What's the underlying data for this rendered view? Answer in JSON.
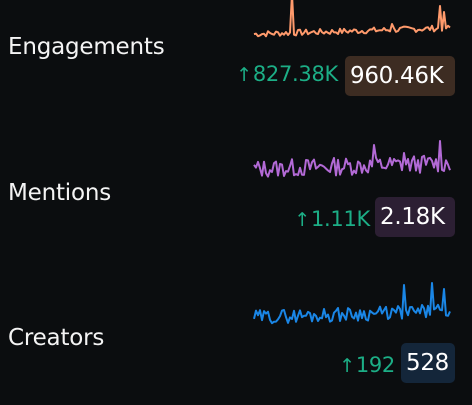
{
  "colors": {
    "background": "#0b0d0f",
    "label": "#f4f4f4",
    "delta_positive": "#1cae86"
  },
  "metrics": [
    {
      "label": "Engagements",
      "delta": "827.38K",
      "delta_icon": "arrow-up-icon",
      "delta_arrow": "↑",
      "total": "960.46K",
      "line_color": "#ff9a6c",
      "badge_color": "#3d2c22"
    },
    {
      "label": "Mentions",
      "delta": "1.11K",
      "delta_icon": "arrow-up-icon",
      "delta_arrow": "↑",
      "total": "2.18K",
      "line_color": "#b36ad6",
      "badge_color": "#2c1f33"
    },
    {
      "label": "Creators",
      "delta": "192",
      "delta_icon": "arrow-up-icon",
      "delta_arrow": "↑",
      "total": "528",
      "line_color": "#1a86e6",
      "badge_color": "#14263a"
    }
  ]
}
